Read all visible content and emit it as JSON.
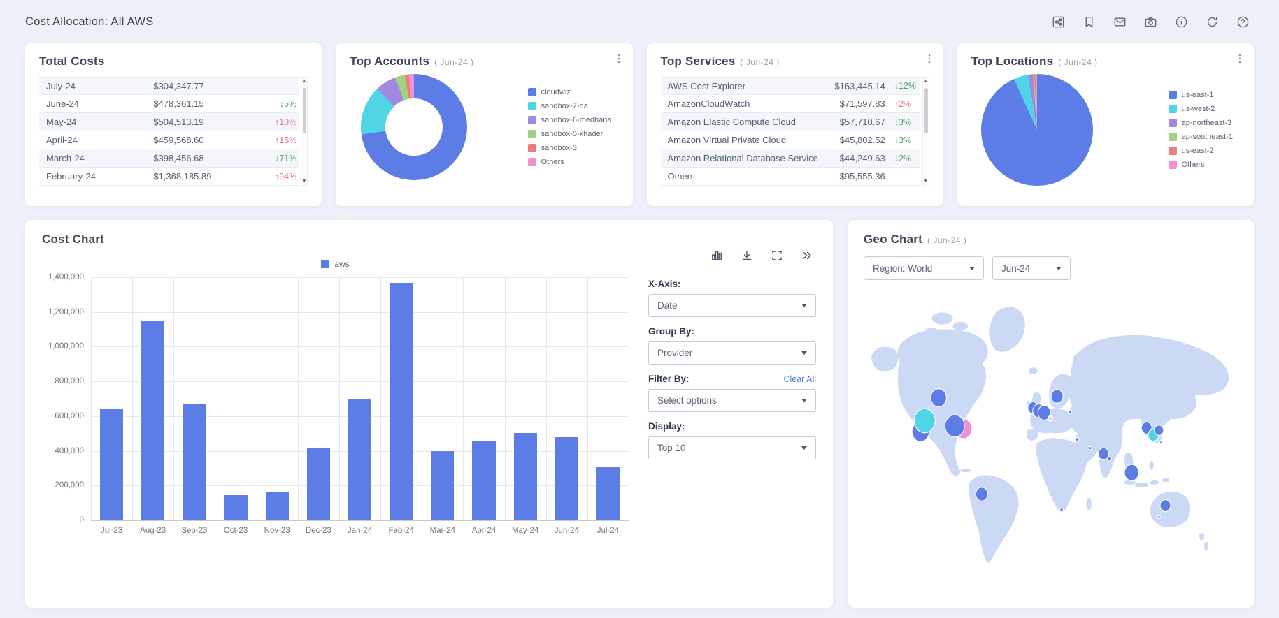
{
  "header": {
    "title": "Cost Allocation: All AWS",
    "icons": [
      "share-icon",
      "bookmark-icon",
      "mail-icon",
      "camera-icon",
      "info-icon",
      "refresh-icon",
      "help-icon"
    ]
  },
  "colors": {
    "accent_blue": "#5c7de6",
    "cyan": "#4fd5e5",
    "purple": "#a188e0",
    "green": "#a3d284",
    "red": "#ec7d7d",
    "pink": "#ef92d2",
    "pct_up_red": "#e2737f",
    "pct_down_green": "#53a569",
    "map_land": "#cbd9f4"
  },
  "panels": {
    "total_costs": {
      "title": "Total Costs",
      "rows": [
        {
          "month": "July-24",
          "amount": "$304,347.77",
          "change": null,
          "direction": null
        },
        {
          "month": "June-24",
          "amount": "$478,361.15",
          "change": "5%",
          "direction": "down"
        },
        {
          "month": "May-24",
          "amount": "$504,513.19",
          "change": "10%",
          "direction": "up"
        },
        {
          "month": "April-24",
          "amount": "$459,568.60",
          "change": "15%",
          "direction": "up"
        },
        {
          "month": "March-24",
          "amount": "$398,456.68",
          "change": "71%",
          "direction": "down"
        },
        {
          "month": "February-24",
          "amount": "$1,368,185.89",
          "change": "94%",
          "direction": "up"
        }
      ]
    },
    "top_accounts": {
      "title": "Top Accounts",
      "period": "( Jun-24 )"
    },
    "top_services": {
      "title": "Top Services",
      "period": "( Jun-24 )",
      "rows": [
        {
          "service": "AWS Cost Explorer",
          "amount": "$163,445.14",
          "change": "12%",
          "direction": "down"
        },
        {
          "service": "AmazonCloudWatch",
          "amount": "$71,597.83",
          "change": "2%",
          "direction": "up"
        },
        {
          "service": "Amazon Elastic Compute Cloud",
          "amount": "$57,710.67",
          "change": "3%",
          "direction": "down"
        },
        {
          "service": "Amazon Virtual Private Cloud",
          "amount": "$45,802.52",
          "change": "3%",
          "direction": "down"
        },
        {
          "service": "Amazon Relational Database Service",
          "amount": "$44,249.63",
          "change": "2%",
          "direction": "down"
        },
        {
          "service": "Others",
          "amount": "$95,555.36",
          "change": null,
          "direction": null
        }
      ]
    },
    "top_locations": {
      "title": "Top Locations",
      "period": "( Jun-24 )"
    },
    "cost_chart": {
      "title": "Cost Chart",
      "toolbar_icons": [
        "chart-type-icon",
        "download-icon",
        "fullscreen-icon",
        "collapse-icon"
      ],
      "controls": [
        {
          "label": "X-Axis:",
          "value": "Date"
        },
        {
          "label": "Group By:",
          "value": "Provider"
        },
        {
          "label": "Filter By:",
          "value": "Select options",
          "action": "Clear All"
        },
        {
          "label": "Display:",
          "value": "Top 10"
        }
      ]
    },
    "geo_chart": {
      "title": "Geo Chart",
      "period": "( Jun-24 )",
      "filters": [
        {
          "value": "Region: World"
        },
        {
          "value": "Jun-24"
        }
      ]
    }
  },
  "chart_data": [
    {
      "id": "top_accounts",
      "type": "pie",
      "subtype": "donut",
      "title": "Top Accounts (Jun-24)",
      "labels": [
        "cloudwiz",
        "sandbox-7-qa",
        "sandbox-6-medhana",
        "sandbox-5-khader",
        "sandbox-3",
        "Others"
      ],
      "values": [
        72.8,
        15,
        6.4,
        3,
        1.2,
        1.6
      ],
      "unit": "percent-estimated",
      "colors": [
        "#5c7de6",
        "#4fd5e5",
        "#a188e0",
        "#a3d284",
        "#ec7d7d",
        "#ef92d2"
      ],
      "legend_position": "right"
    },
    {
      "id": "top_locations",
      "type": "pie",
      "title": "Top Locations (Jun-24)",
      "labels": [
        "us-east-1",
        "us-west-2",
        "ap-northeast-3",
        "ap-southeast-1",
        "us-east-2",
        "Others"
      ],
      "values": [
        93.2,
        4.2,
        1.4,
        0.4,
        0.3,
        0.5
      ],
      "unit": "percent-estimated",
      "colors": [
        "#5c7de6",
        "#4fd5e5",
        "#a188e0",
        "#a3d284",
        "#ec7d7d",
        "#ef92d2"
      ],
      "legend_position": "right"
    },
    {
      "id": "cost_chart",
      "type": "bar",
      "title": "Cost Chart",
      "categories": [
        "Jul-23",
        "Aug-23",
        "Sep-23",
        "Oct-23",
        "Nov-23",
        "Dec-23",
        "Jan-24",
        "Feb-24",
        "Mar-24",
        "Apr-24",
        "May-24",
        "Jun-24",
        "Jul-24"
      ],
      "series": [
        {
          "name": "aws",
          "color": "#5c7de6",
          "values": [
            640000,
            1150000,
            670000,
            145000,
            160000,
            415000,
            700000,
            1368186,
            398457,
            459569,
            504513,
            478361,
            304348
          ]
        }
      ],
      "xlabel": "",
      "ylabel": "",
      "ylim": [
        0,
        1400000
      ],
      "ytick_step": 200000,
      "yticks": [
        "1,400,000",
        "1,200,000",
        "1,000,000",
        "800,000",
        "600,000",
        "400,000",
        "200,000",
        "0"
      ],
      "grid": true,
      "legend_position": "top"
    },
    {
      "id": "geo_chart",
      "type": "scatter",
      "subtype": "geo-bubbles",
      "title": "Geo Chart (Jun-24)",
      "region": "World",
      "period": "Jun-24",
      "points": [
        {
          "name": "canada",
          "x": 20,
          "y": 38,
          "r": 21,
          "color": "blue"
        },
        {
          "name": "us-west-blue",
          "x": 15.2,
          "y": 49.8,
          "r": 23,
          "color": "blue"
        },
        {
          "name": "us-west-cyan",
          "x": 16.3,
          "y": 46,
          "r": 28,
          "color": "cyan"
        },
        {
          "name": "us-east-pink",
          "x": 26.6,
          "y": 48.8,
          "r": 23,
          "color": "pink"
        },
        {
          "name": "us-east-blue",
          "x": 24.3,
          "y": 47.8,
          "r": 26,
          "color": "blue"
        },
        {
          "name": "sao-paulo",
          "x": 31.5,
          "y": 71.5,
          "r": 16,
          "color": "blue"
        },
        {
          "name": "ireland",
          "x": 45.2,
          "y": 41.5,
          "r": 14,
          "color": "blue"
        },
        {
          "name": "london",
          "x": 46.7,
          "y": 42.6,
          "r": 16,
          "color": "blue"
        },
        {
          "name": "frankfurt",
          "x": 48.2,
          "y": 43.2,
          "r": 17,
          "color": "blue"
        },
        {
          "name": "paris-ring",
          "x": 49.8,
          "y": 45.2,
          "r": 6,
          "color": "ring"
        },
        {
          "name": "stockholm",
          "x": 51.6,
          "y": 37.5,
          "r": 16,
          "color": "blue"
        },
        {
          "name": "moscow",
          "x": 55,
          "y": 43,
          "r": 4.5,
          "color": "blue"
        },
        {
          "name": "tel-aviv",
          "x": 57,
          "y": 52.5,
          "r": 4.5,
          "color": "blue"
        },
        {
          "name": "bahrain",
          "x": 60.5,
          "y": 55.5,
          "r": 3.5,
          "color": "blue"
        },
        {
          "name": "mumbai",
          "x": 64,
          "y": 57.5,
          "r": 14,
          "color": "blue"
        },
        {
          "name": "hyderabad",
          "x": 65.6,
          "y": 59.2,
          "r": 5.5,
          "color": "blue"
        },
        {
          "name": "singapore",
          "x": 71.5,
          "y": 64,
          "r": 19,
          "color": "blue"
        },
        {
          "name": "seoul",
          "x": 75.5,
          "y": 48.5,
          "r": 14,
          "color": "blue"
        },
        {
          "name": "osaka",
          "x": 77.3,
          "y": 51,
          "r": 14,
          "color": "cyan"
        },
        {
          "name": "tokyo",
          "x": 78.8,
          "y": 49.3,
          "r": 12,
          "color": "blue"
        },
        {
          "name": "japan-dot",
          "x": 79.3,
          "y": 53.5,
          "r": 3,
          "color": "blue"
        },
        {
          "name": "sydney",
          "x": 80.5,
          "y": 75.5,
          "r": 14,
          "color": "blue"
        },
        {
          "name": "melbourne",
          "x": 78.8,
          "y": 79.5,
          "r": 3.5,
          "color": "blue"
        },
        {
          "name": "cape-town",
          "x": 52.8,
          "y": 77,
          "r": 4.5,
          "color": "blue"
        }
      ]
    }
  ]
}
